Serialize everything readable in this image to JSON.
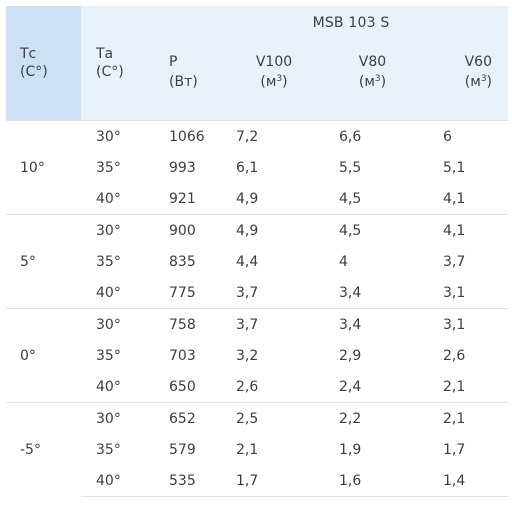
{
  "table": {
    "header": {
      "tc_line1": "Тс",
      "tc_line2": "(С°)",
      "ta_line1": "Та",
      "ta_line2": "(С°)",
      "model": "MSB 103 S",
      "p_line1": "P",
      "p_line2": "(Вт)",
      "v100_line1": "V100",
      "v80_line1": "V80",
      "v60_line1": "V60",
      "unit_open": "(м",
      "unit_sup": "3",
      "unit_close": ")"
    },
    "groups": [
      {
        "tc": "10°",
        "rows": [
          {
            "ta": "30°",
            "p": "1066",
            "v100": "7,2",
            "v80": "6,6",
            "v60": "6"
          },
          {
            "ta": "35°",
            "p": "993",
            "v100": "6,1",
            "v80": "5,5",
            "v60": "5,1"
          },
          {
            "ta": "40°",
            "p": "921",
            "v100": "4,9",
            "v80": "4,5",
            "v60": "4,1"
          }
        ]
      },
      {
        "tc": "5°",
        "rows": [
          {
            "ta": "30°",
            "p": "900",
            "v100": "4,9",
            "v80": "4,5",
            "v60": "4,1"
          },
          {
            "ta": "35°",
            "p": "835",
            "v100": "4,4",
            "v80": "4",
            "v60": "3,7"
          },
          {
            "ta": "40°",
            "p": "775",
            "v100": "3,7",
            "v80": "3,4",
            "v60": "3,1"
          }
        ]
      },
      {
        "tc": "0°",
        "rows": [
          {
            "ta": "30°",
            "p": "758",
            "v100": "3,7",
            "v80": "3,4",
            "v60": "3,1"
          },
          {
            "ta": "35°",
            "p": "703",
            "v100": "3,2",
            "v80": "2,9",
            "v60": "2,6"
          },
          {
            "ta": "40°",
            "p": "650",
            "v100": "2,6",
            "v80": "2,4",
            "v60": "2,1"
          }
        ]
      },
      {
        "tc": "-5°",
        "rows": [
          {
            "ta": "30°",
            "p": "652",
            "v100": "2,5",
            "v80": "2,2",
            "v60": "2,1"
          },
          {
            "ta": "35°",
            "p": "579",
            "v100": "2,1",
            "v80": "1,9",
            "v60": "1,7"
          },
          {
            "ta": "40°",
            "p": "535",
            "v100": "1,7",
            "v80": "1,6",
            "v60": "1,4"
          }
        ]
      }
    ],
    "colors": {
      "header_dark": "#cde0f5",
      "header_light": "#e9f1fb",
      "grid_line": "#dbe3ec",
      "text": "#3a3f45"
    }
  }
}
